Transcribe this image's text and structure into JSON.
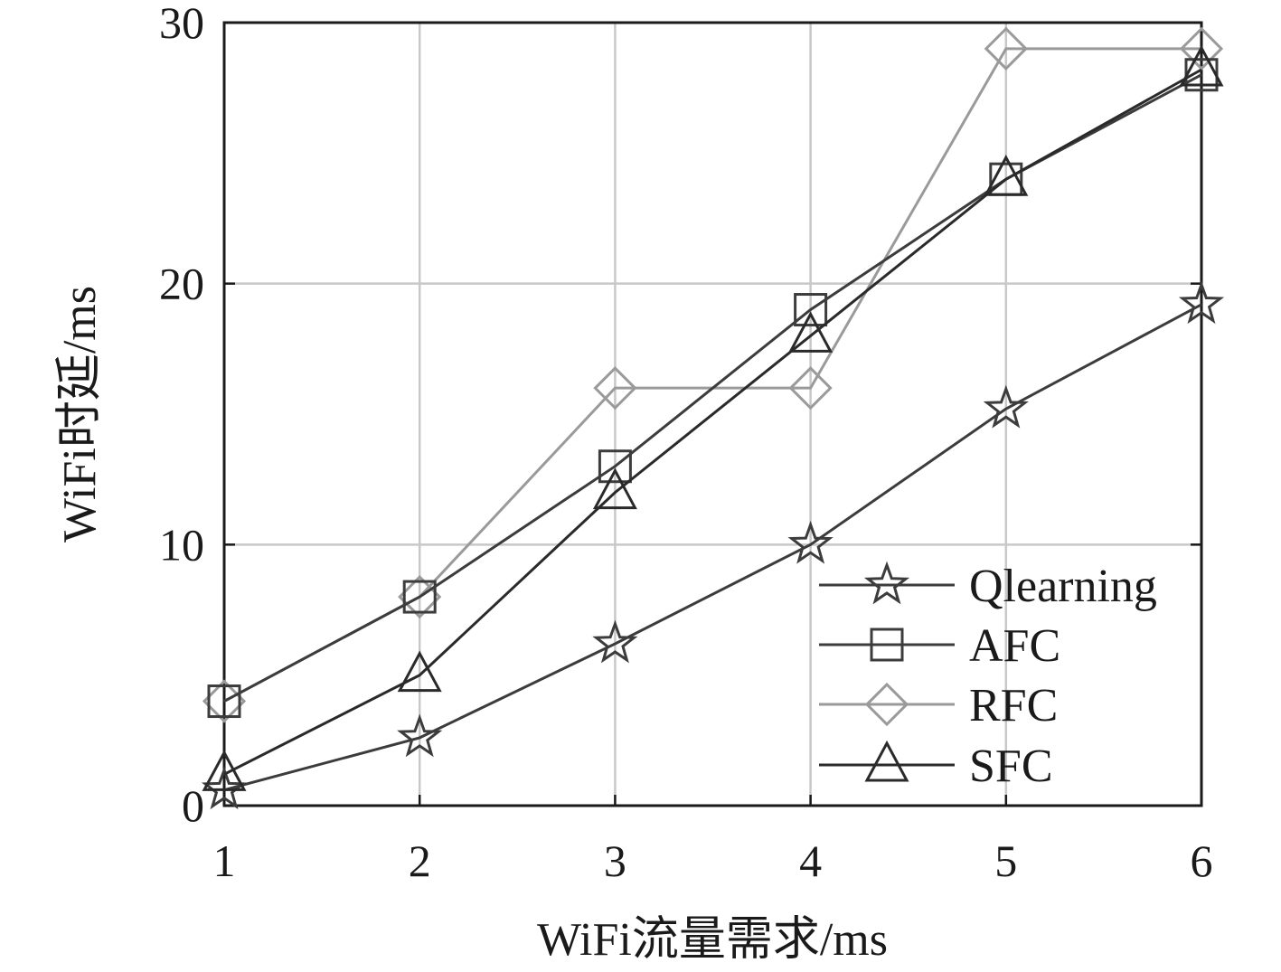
{
  "chart_data": {
    "type": "line",
    "xlabel": "WiFi流量需求/ms",
    "ylabel": "WiFi时延/ms",
    "x": [
      1,
      2,
      3,
      4,
      5,
      6
    ],
    "x_ticks": [
      "1",
      "2",
      "3",
      "4",
      "5",
      "6"
    ],
    "y_ticks": [
      "0",
      "10",
      "20",
      "30"
    ],
    "xlim": [
      1,
      6
    ],
    "ylim": [
      0,
      30
    ],
    "grid": true,
    "legend_position": "bottom-right",
    "series": [
      {
        "name": "Qlearning",
        "marker": "star",
        "color": "#3c3c3c",
        "values": [
          0.6,
          2.6,
          6.2,
          10.0,
          15.2,
          19.2
        ]
      },
      {
        "name": "AFC",
        "marker": "square",
        "color": "#3c3c3c",
        "values": [
          4.0,
          8.0,
          13.0,
          19.0,
          24.0,
          28.0
        ]
      },
      {
        "name": "RFC",
        "marker": "diamond",
        "color": "#9a9a9a",
        "values": [
          4.0,
          8.0,
          16.0,
          16.0,
          29.0,
          29.0
        ]
      },
      {
        "name": "SFC",
        "marker": "triangle",
        "color": "#2a2a2a",
        "values": [
          1.2,
          5.0,
          12.0,
          18.0,
          24.0,
          28.2
        ]
      }
    ]
  }
}
